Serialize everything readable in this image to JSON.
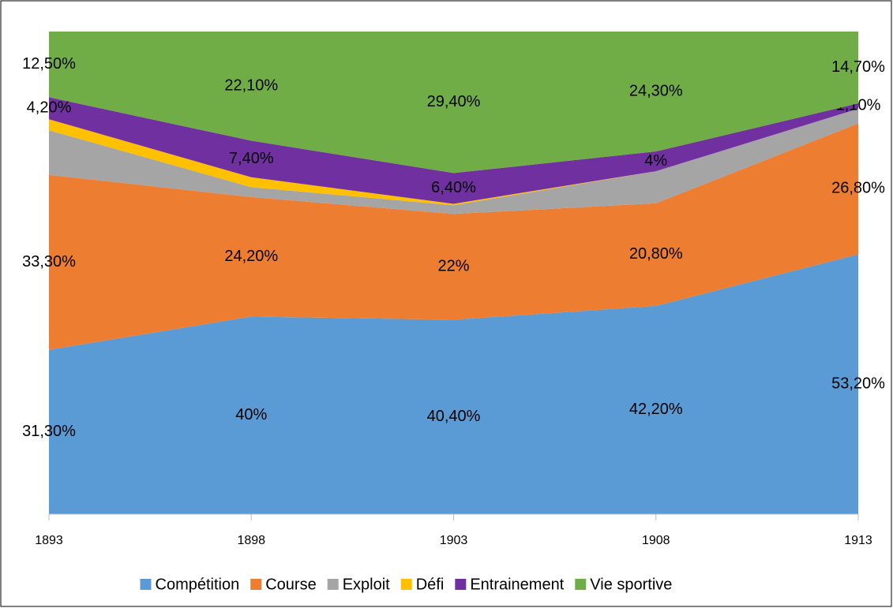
{
  "chart_data": {
    "type": "area",
    "stacking": "percent",
    "categories": [
      "1893",
      "1898",
      "1903",
      "1908",
      "1913"
    ],
    "series": [
      {
        "name": "Compétition",
        "color": "#5b9bd5",
        "values": [
          31.3,
          40,
          40.4,
          42.2,
          53.2
        ],
        "value_labels": [
          "31,30%",
          "40%",
          "40,40%",
          "42,20%",
          "53,20%"
        ]
      },
      {
        "name": "Course",
        "color": "#ed7d31",
        "values": [
          33.3,
          24.2,
          22,
          20.8,
          26.8
        ],
        "value_labels": [
          "33,30%",
          "24,20%",
          "22%",
          "20,80%",
          "26,80%"
        ]
      },
      {
        "name": "Exploit",
        "color": "#a5a5a5",
        "values": [
          8.5,
          2,
          1.8,
          6.5,
          3
        ]
      },
      {
        "name": "Défi",
        "color": "#ffc000",
        "values": [
          2.1,
          2,
          0.3,
          0,
          0
        ]
      },
      {
        "name": "Entrainement",
        "color": "#7030a0",
        "values": [
          4.2,
          7.4,
          6.4,
          4,
          1.1
        ],
        "value_labels": [
          "4,20%",
          "7,40%",
          "6,40%",
          "4%",
          "1,10%"
        ]
      },
      {
        "name": "Vie sportive",
        "color": "#70ad47",
        "values": [
          12.5,
          22.1,
          29.4,
          24.3,
          14.7
        ],
        "value_labels": [
          "12,50%",
          "22,10%",
          "29,40%",
          "24,30%",
          "14,70%"
        ]
      }
    ],
    "legend": "bottom"
  }
}
